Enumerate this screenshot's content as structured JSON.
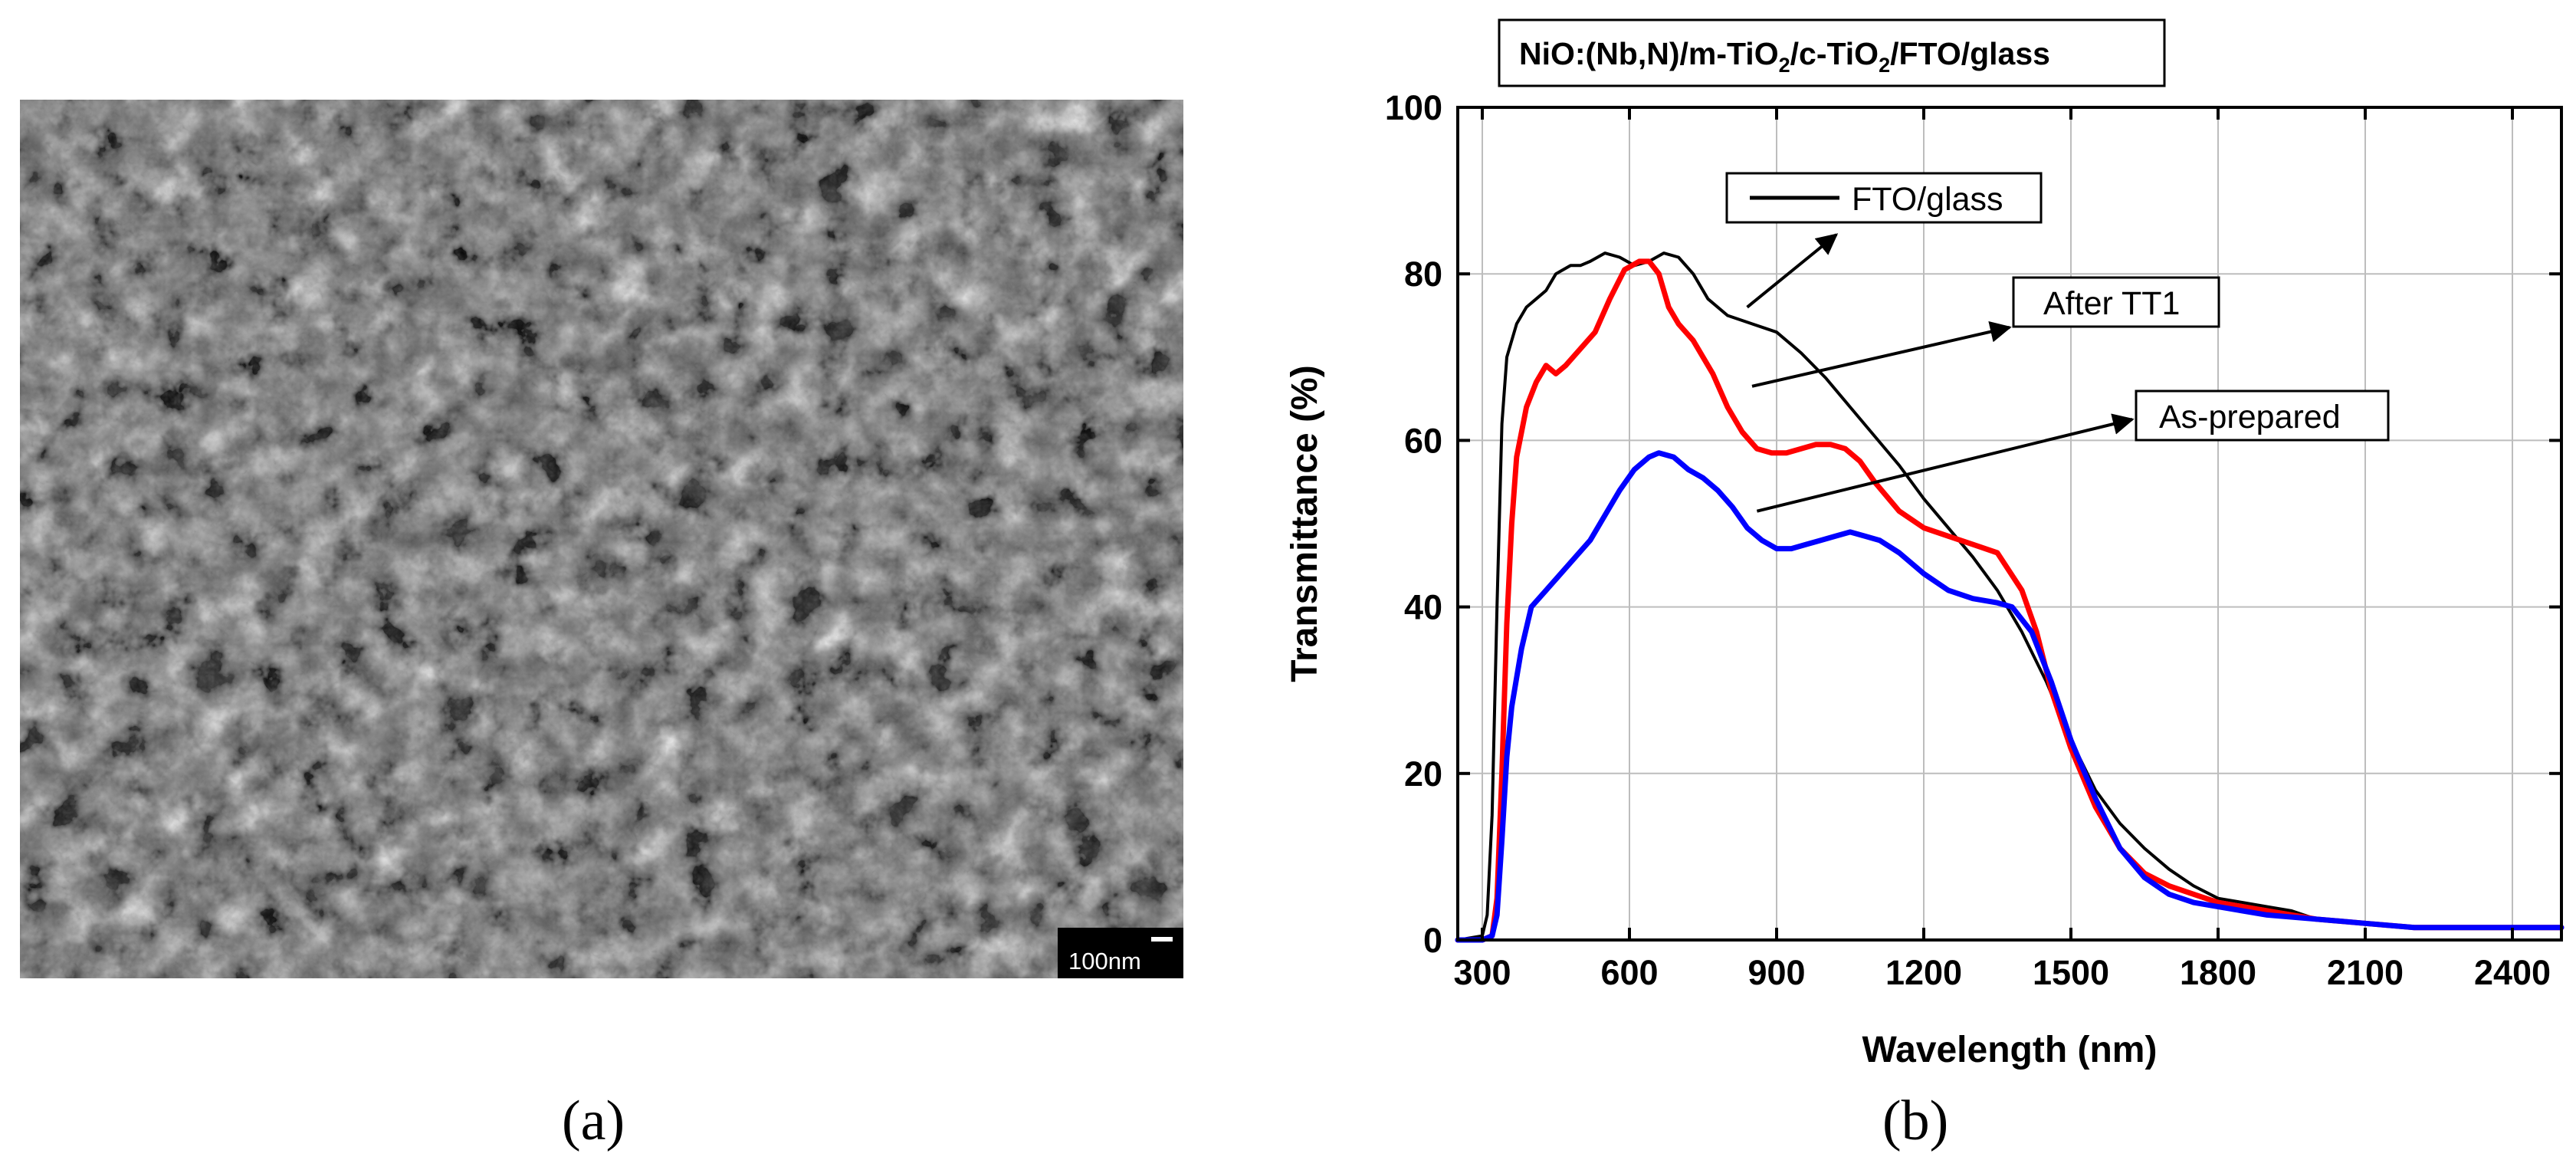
{
  "panels": {
    "a": {
      "label": "(a)",
      "description": "SEM micrograph",
      "scale_bar": "100nm"
    },
    "b": {
      "label": "(b)"
    }
  },
  "chart_data": {
    "type": "line",
    "title": "NiO:(Nb,N)/m-TiO2/c-TiO2/FTO/glass",
    "title_parts": [
      "NiO:(Nb,N)/m-TiO",
      "2",
      "/c-TiO",
      "2",
      "/FTO/glass"
    ],
    "xlabel": "Wavelength  (nm)",
    "ylabel": "Transmittance  (%)",
    "xlim": [
      250,
      2500
    ],
    "ylim": [
      0,
      100
    ],
    "xticks": [
      300,
      600,
      900,
      1200,
      1500,
      1800,
      2100,
      2400
    ],
    "yticks": [
      0,
      20,
      40,
      60,
      80,
      100
    ],
    "grid": true,
    "legend_position": "top-center",
    "series": [
      {
        "name": "FTO/glass",
        "color": "#000000",
        "x": [
          250,
          300,
          310,
          320,
          330,
          340,
          350,
          370,
          390,
          410,
          430,
          450,
          480,
          500,
          520,
          550,
          580,
          610,
          640,
          670,
          700,
          730,
          760,
          800,
          850,
          900,
          950,
          1000,
          1050,
          1100,
          1150,
          1200,
          1250,
          1300,
          1350,
          1400,
          1450,
          1500,
          1550,
          1600,
          1650,
          1700,
          1750,
          1800,
          1850,
          1900,
          1950,
          2000,
          2100,
          2200,
          2300,
          2400,
          2500
        ],
        "y": [
          0,
          0.5,
          3,
          15,
          40,
          62,
          70,
          74,
          76,
          77,
          78,
          80,
          81,
          81,
          81.5,
          82.5,
          82,
          81,
          81.5,
          82.5,
          82,
          80,
          77,
          75,
          74,
          73,
          70.5,
          67.5,
          64,
          60.5,
          57,
          53,
          49.5,
          46,
          42,
          37,
          31,
          24,
          18,
          14,
          11,
          8.5,
          6.5,
          5,
          4.5,
          4,
          3.5,
          2.5,
          2,
          1.5,
          1.5,
          1.5,
          1.5
        ]
      },
      {
        "name": "After TT1",
        "color": "#ff0000",
        "x": [
          250,
          300,
          320,
          330,
          340,
          350,
          360,
          370,
          390,
          410,
          430,
          450,
          470,
          500,
          530,
          560,
          590,
          620,
          640,
          660,
          680,
          700,
          730,
          770,
          800,
          830,
          860,
          890,
          920,
          950,
          980,
          1010,
          1040,
          1070,
          1100,
          1150,
          1200,
          1250,
          1300,
          1350,
          1400,
          1430,
          1460,
          1500,
          1550,
          1600,
          1650,
          1700,
          1750,
          1800,
          1900,
          2000,
          2100,
          2200,
          2300,
          2400,
          2500
        ],
        "y": [
          0,
          0,
          0.5,
          5,
          20,
          38,
          50,
          58,
          64,
          67,
          69,
          68,
          69,
          71,
          73,
          77,
          80.5,
          81.5,
          81.5,
          80,
          76,
          74,
          72,
          68,
          64,
          61,
          59,
          58.5,
          58.5,
          59,
          59.5,
          59.5,
          59,
          57.5,
          55,
          51.5,
          49.5,
          48.5,
          47.5,
          46.5,
          42,
          37,
          30,
          23,
          16,
          11,
          8,
          6.5,
          5.5,
          4.5,
          3.5,
          2.5,
          2,
          1.5,
          1.5,
          1.5,
          1.5
        ]
      },
      {
        "name": "As-prepared",
        "color": "#0000ff",
        "x": [
          250,
          300,
          320,
          330,
          340,
          350,
          360,
          380,
          400,
          430,
          460,
          490,
          520,
          550,
          580,
          610,
          640,
          660,
          690,
          720,
          750,
          780,
          810,
          840,
          870,
          900,
          930,
          960,
          990,
          1020,
          1050,
          1080,
          1110,
          1150,
          1200,
          1250,
          1300,
          1350,
          1380,
          1420,
          1460,
          1500,
          1550,
          1600,
          1650,
          1700,
          1750,
          1800,
          1900,
          2000,
          2100,
          2200,
          2300,
          2400,
          2500
        ],
        "y": [
          0,
          0,
          0.5,
          3,
          12,
          22,
          28,
          35,
          40,
          42,
          44,
          46,
          48,
          51,
          54,
          56.5,
          58,
          58.5,
          58,
          56.5,
          55.5,
          54,
          52,
          49.5,
          48,
          47,
          47,
          47.5,
          48,
          48.5,
          49,
          48.5,
          48,
          46.5,
          44,
          42,
          41,
          40.5,
          40,
          37,
          31,
          24,
          17,
          11,
          7.5,
          5.5,
          4.5,
          4,
          3,
          2.5,
          2,
          1.5,
          1.5,
          1.5,
          1.5
        ]
      }
    ],
    "annotations": [
      {
        "text": "FTO/glass",
        "series": "FTO/glass",
        "x": 840,
        "y": 76
      },
      {
        "text": "After TT1",
        "series": "After TT1",
        "x": 850,
        "y": 66.5
      },
      {
        "text": "As-prepared",
        "series": "As-prepared",
        "x": 860,
        "y": 51.5
      }
    ]
  }
}
